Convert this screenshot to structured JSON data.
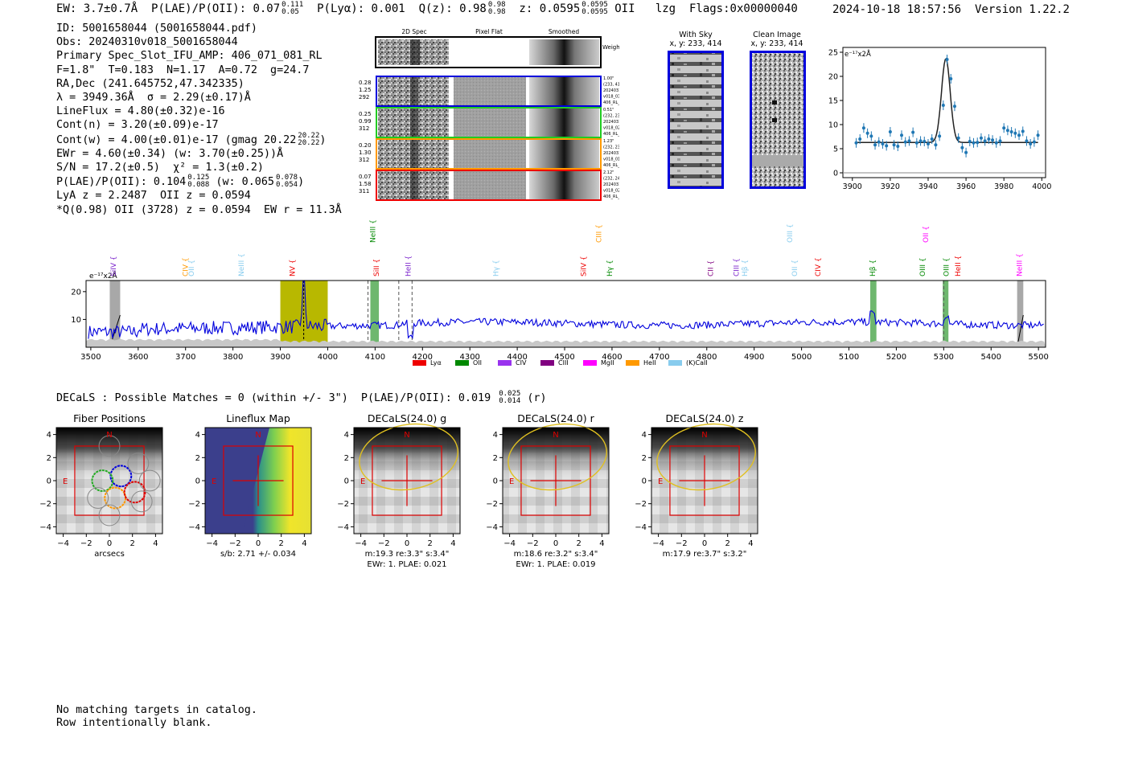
{
  "header": {
    "ew": "EW: 3.7±0.7Å",
    "plae_label": "P(LAE)/P(OII): 0.07",
    "plae_hi": "0.111",
    "plae_lo": "0.05",
    "plya": "P(Lyα): 0.001",
    "qz_label": "Q(z): 0.98",
    "qz_hi": "0.98",
    "qz_lo": "0.98",
    "z_label": "z: 0.0595",
    "z_hi": "0.0595",
    "z_lo": "0.0595",
    "z_line": "OII",
    "lzg": "lzg",
    "flags": "Flags:0x00000040",
    "timestamp": "2024-10-18 18:57:56",
    "version": "Version 1.22.2"
  },
  "info": {
    "id": "ID: 5001658044 (5001658044.pdf)",
    "obs": "Obs: 20240310v018_5001658044",
    "primary": "Primary Spec_Slot_IFU_AMP: 406_071_081_RL",
    "fit": "F=1.8\"  T=0.183  N=1.17  A=0.72  g=24.7",
    "radec": "RA,Dec (241.645752,47.342335)",
    "lambda": "λ = 3949.36Å  σ = 2.29(±0.17)Å",
    "lineflux": "LineFlux = 4.80(±0.32)e-16",
    "contn": "Cont(n) = 3.20(±0.09)e-17",
    "contw": "Cont(w) = 4.00(±0.01)e-17 (gmag 20.22",
    "contw_hi": "20.22",
    "contw_lo": "20.22",
    "contw_end": ")",
    "ewr": "EWr = 4.60(±0.34) (w: 3.70(±0.25))Å",
    "sn": "S/N = 17.2(±0.5)  χ² = 1.3(±0.2)",
    "plae": "P(LAE)/P(OII): 0.104",
    "plae_hi": "0.125",
    "plae_lo": "0.088",
    "plae_w": "(w: 0.065",
    "plae_w_hi": "0.078",
    "plae_w_lo": "0.054",
    "plae_w_end": ")",
    "lya": "LyA z = 2.2487  OII z = 0.0594",
    "q": "*Q(0.98) OII (3728) z = 0.0594  EW r = 11.3Å"
  },
  "cutouts": {
    "col_headers": [
      "2D Spec",
      "Pixel Flat",
      "Smoothed"
    ],
    "weighted_sum": "Weighted Sum",
    "rows": [
      {
        "left": [
          "0.28",
          "1.25",
          "292"
        ],
        "right": [
          "1.00\"",
          "(233, 414)",
          "20240310",
          "v018_03",
          "406_RL_045"
        ],
        "color": "#0000dd"
      },
      {
        "left": [
          "0.25",
          "0.99",
          "312"
        ],
        "right": [
          "0.51\"",
          "(232, 231)",
          "20240310",
          "v018_02",
          "406_RL_025"
        ],
        "color": "#22cc22"
      },
      {
        "left": [
          "0.20",
          "1.30",
          "312"
        ],
        "right": [
          "1.23\"",
          "(232, 231)",
          "20240310",
          "v018_01",
          "406_RL_025"
        ],
        "color": "#ff9900"
      },
      {
        "left": [
          "0.07",
          "1.58",
          "311"
        ],
        "right": [
          "2.12\"",
          "(232, 240)",
          "20240310",
          "v018_02",
          "406_RL_026"
        ],
        "color": "#ee0000"
      }
    ]
  },
  "sky": {
    "with_sky_title": "With Sky",
    "with_sky_xy": "x, y: 233, 414",
    "clean_title": "Clean Image",
    "clean_xy": "x, y: 233, 414"
  },
  "chart_data": [
    {
      "type": "scatter",
      "ylabel": "e⁻¹⁷x2Å",
      "xlim": [
        3895,
        4002
      ],
      "ylim": [
        -1,
        26
      ],
      "xticks": [
        3900,
        3920,
        3940,
        3960,
        3980,
        4000
      ],
      "yticks": [
        0,
        5,
        10,
        15,
        20,
        25
      ],
      "points_x": [
        3902,
        3904,
        3906,
        3908,
        3910,
        3912,
        3914,
        3916,
        3918,
        3920,
        3922,
        3924,
        3926,
        3928,
        3930,
        3932,
        3934,
        3936,
        3938,
        3940,
        3942,
        3944,
        3946,
        3948,
        3950,
        3952,
        3954,
        3956,
        3958,
        3960,
        3962,
        3964,
        3966,
        3968,
        3970,
        3972,
        3974,
        3976,
        3978,
        3980,
        3982,
        3984,
        3986,
        3988,
        3990,
        3992,
        3994,
        3996,
        3998
      ],
      "points_y": [
        6.2,
        7.0,
        9.3,
        8.2,
        7.6,
        5.8,
        6.4,
        6.0,
        5.6,
        8.5,
        5.8,
        5.5,
        7.8,
        6.4,
        6.6,
        8.4,
        6.2,
        6.6,
        6.5,
        6.0,
        7.0,
        5.8,
        7.6,
        14.0,
        23.5,
        19.5,
        13.8,
        7.2,
        5.2,
        4.2,
        6.5,
        6.2,
        6.3,
        7.2,
        6.6,
        7.0,
        6.8,
        6.2,
        6.6,
        9.3,
        8.8,
        8.5,
        8.2,
        7.8,
        8.6,
        6.6,
        6.0,
        6.4,
        7.8
      ],
      "fit_model": {
        "center": 3949.36,
        "sigma": 2.29,
        "amplitude": 17.4,
        "continuum": 6.3
      }
    },
    {
      "type": "line",
      "ylabel": "e⁻¹⁷x2Å",
      "xlim": [
        3490,
        5515
      ],
      "ylim": [
        0,
        24
      ],
      "xticks": [
        3500,
        3600,
        3700,
        3800,
        3900,
        4000,
        4100,
        4200,
        4300,
        4400,
        4500,
        4600,
        4700,
        4800,
        4900,
        5000,
        5100,
        5200,
        5300,
        5400,
        5500
      ],
      "yticks": [
        10,
        20
      ],
      "emission_peak": 3949.36,
      "highlight_band": [
        3900,
        4000
      ],
      "line_markers": [
        {
          "label": "SiIV",
          "x": 3548,
          "color": "#7a22cc",
          "row": 1
        },
        {
          "label": "CIV",
          "x": 3700,
          "color": "#ff9900",
          "row": 1
        },
        {
          "label": "OII",
          "x": 3712,
          "color": "#88ccee",
          "row": 1
        },
        {
          "label": "NeIII",
          "x": 3818,
          "color": "#88ccee",
          "row": 1
        },
        {
          "label": "NV",
          "x": 3925,
          "color": "#ee0000",
          "row": 1
        },
        {
          "label": "NeIII",
          "x": 4095,
          "color": "#008800",
          "row": 0
        },
        {
          "label": "SiII",
          "x": 4103,
          "color": "#ee0000",
          "row": 1
        },
        {
          "label": "HeII",
          "x": 4170,
          "color": "#7a22cc",
          "row": 1
        },
        {
          "label": "Hγ",
          "x": 4355,
          "color": "#88ccee",
          "row": 1
        },
        {
          "label": "CIII",
          "x": 4572,
          "color": "#ff9900",
          "row": 0
        },
        {
          "label": "SiIV",
          "x": 4540,
          "color": "#ee0000",
          "row": 1
        },
        {
          "label": "Hγ",
          "x": 4595,
          "color": "#008800",
          "row": 1
        },
        {
          "label": "CII",
          "x": 4808,
          "color": "#800080",
          "row": 1
        },
        {
          "label": "CIII",
          "x": 4862,
          "color": "#7a22cc",
          "row": 1
        },
        {
          "label": "Hβ",
          "x": 4880,
          "color": "#88ccee",
          "row": 1
        },
        {
          "label": "OIII",
          "x": 4975,
          "color": "#88ccee",
          "row": 0
        },
        {
          "label": "OII",
          "x": 4985,
          "color": "#88ccee",
          "row": 1
        },
        {
          "label": "CIV",
          "x": 5035,
          "color": "#ee0000",
          "row": 1
        },
        {
          "label": "Hβ",
          "x": 5150,
          "color": "#008800",
          "row": 1
        },
        {
          "label": "OII",
          "x": 5262,
          "color": "#ff00ff",
          "row": 0
        },
        {
          "label": "OIII",
          "x": 5255,
          "color": "#008800",
          "row": 1
        },
        {
          "label": "OIII",
          "x": 5305,
          "color": "#008800",
          "row": 1
        },
        {
          "label": "HeII",
          "x": 5330,
          "color": "#ee0000",
          "row": 1
        },
        {
          "label": "NeIII",
          "x": 5460,
          "color": "#ff00ff",
          "row": 1
        }
      ],
      "legend": [
        {
          "label": "Lyα",
          "color": "#ee0000"
        },
        {
          "label": "OII",
          "color": "#008800"
        },
        {
          "label": "CIV",
          "color": "#9933ee"
        },
        {
          "label": "CIII",
          "color": "#800080"
        },
        {
          "label": "MgII",
          "color": "#ff00ff"
        },
        {
          "label": "HeII",
          "color": "#ff9900"
        },
        {
          "label": "(K)CaII",
          "color": "#88ccee"
        }
      ],
      "legend_position": "bottom"
    }
  ],
  "decals": {
    "line": "DECaLS : Possible Matches = 0 (within +/- 3\")  P(LAE)/P(OII): 0.019",
    "hi": "0.025",
    "lo": "0.014",
    "end": "(r)",
    "panels": [
      {
        "title": "Fiber Positions",
        "caption1": "arcsecs",
        "caption2": "",
        "kind": "fiber"
      },
      {
        "title": "Lineflux Map",
        "caption1": "s/b: 2.71 +/- 0.034",
        "caption2": "",
        "kind": "lineflux"
      },
      {
        "title": "DECaLS(24.0) g",
        "caption1": "m:19.3  re:3.3\"  s:3.4\"",
        "caption2": "EWr: 1. PLAE: 0.021",
        "kind": "img"
      },
      {
        "title": "DECaLS(24.0) r",
        "caption1": "m:18.6  re:3.2\"  s:3.4\"",
        "caption2": "EWr: 1. PLAE: 0.019",
        "kind": "img"
      },
      {
        "title": "DECaLS(24.0) z",
        "caption1": "m:17.9  re:3.7\"  s:3.2\"",
        "caption2": "",
        "kind": "img"
      }
    ],
    "axis_ticks": [
      "−4",
      "−2",
      "0",
      "2",
      "4"
    ],
    "north": "N",
    "east": "E"
  },
  "footer": {
    "line1": "No matching targets in catalog.",
    "line2": "Row intentionally blank."
  }
}
